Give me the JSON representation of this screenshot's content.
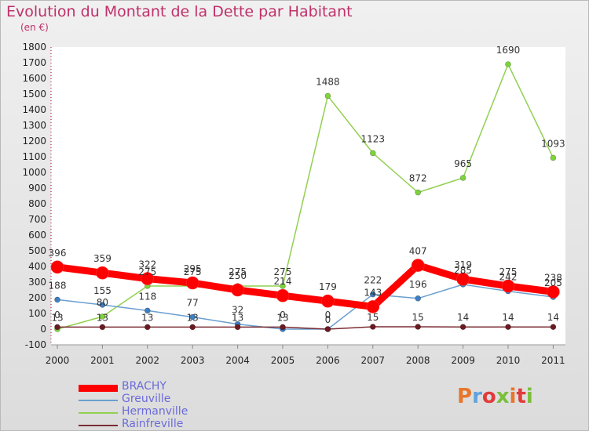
{
  "colors": {
    "title": "#c0306a",
    "series": [
      "#ff0000",
      "#6a9fd0",
      "#92d050",
      "#7b2d34"
    ],
    "marker_fill": [
      "#ff0000",
      "#3d7fc2",
      "#7dd43a",
      "#6b1a22"
    ],
    "logo": [
      "#e8762b",
      "#5fa3dd",
      "#e23a3a",
      "#7abf3a",
      "#e8762b",
      "#e23a3a",
      "#7abf3a"
    ]
  },
  "logo": {
    "letters": [
      "P",
      "r",
      "o",
      "x",
      "i",
      "t",
      "i"
    ],
    "icon": "proxiti-logo"
  },
  "chart_data": {
    "type": "line",
    "title": "Evolution du Montant de la Dette par Habitant",
    "subtitle": "(en €)",
    "x": [
      "2000",
      "2001",
      "2002",
      "2003",
      "2004",
      "2005",
      "2006",
      "2007",
      "2008",
      "2009",
      "2010",
      "2011"
    ],
    "ylim": [
      -100,
      1800
    ],
    "yticks": [
      -100,
      0,
      100,
      200,
      300,
      400,
      500,
      600,
      700,
      800,
      900,
      1000,
      1100,
      1200,
      1300,
      1400,
      1500,
      1600,
      1700,
      1800
    ],
    "grid": false,
    "legend": "bottom-left",
    "series": [
      {
        "name": "BRACHY",
        "values": [
          396,
          359,
          322,
          295,
          250,
          214,
          179,
          143,
          407,
          319,
          275,
          238
        ]
      },
      {
        "name": "Greuville",
        "values": [
          188,
          155,
          118,
          77,
          32,
          0,
          0,
          222,
          196,
          285,
          242,
          205
        ]
      },
      {
        "name": "Hermanville",
        "values": [
          0,
          80,
          275,
          275,
          275,
          275,
          1488,
          1123,
          872,
          965,
          1690,
          1093
        ]
      },
      {
        "name": "Rainfreville",
        "values": [
          13,
          13,
          13,
          13,
          13,
          13,
          0,
          15,
          15,
          14,
          14,
          14
        ]
      }
    ]
  }
}
